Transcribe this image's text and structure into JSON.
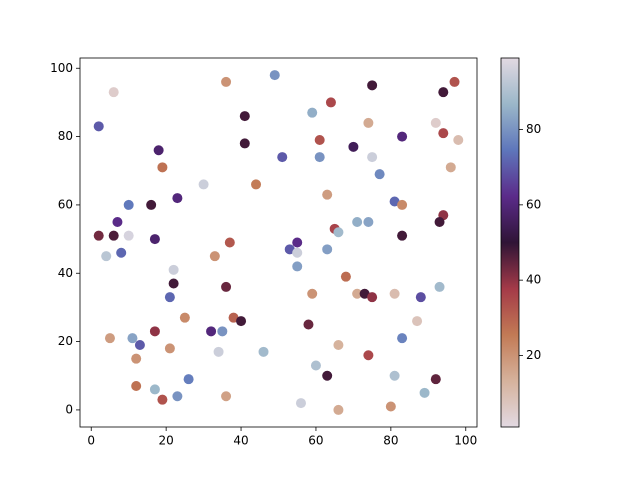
{
  "chart_data": {
    "type": "scatter",
    "x": [
      6,
      2,
      36,
      49,
      41,
      64,
      75,
      94,
      97,
      59,
      74,
      92,
      18,
      19,
      41,
      61,
      70,
      83,
      94,
      98,
      51,
      61,
      75,
      30,
      44,
      63,
      77,
      96,
      10,
      16,
      23,
      7,
      81,
      83,
      71,
      74,
      94,
      93,
      2,
      6,
      10,
      17,
      37,
      55,
      53,
      55,
      65,
      66,
      63,
      83,
      4,
      8,
      33,
      22,
      22,
      21,
      36,
      55,
      68,
      59,
      71,
      73,
      75,
      81,
      88,
      93,
      25,
      38,
      40,
      32,
      35,
      17,
      11,
      13,
      5,
      58,
      66,
      74,
      83,
      87,
      12,
      21,
      34,
      46,
      60,
      63,
      81,
      92,
      26,
      17,
      12,
      23,
      19,
      36,
      56,
      66,
      80,
      89
    ],
    "y": [
      93,
      83,
      96,
      98,
      86,
      90,
      95,
      93,
      96,
      87,
      84,
      84,
      76,
      71,
      78,
      79,
      77,
      80,
      81,
      79,
      74,
      74,
      74,
      66,
      66,
      63,
      69,
      71,
      60,
      60,
      62,
      55,
      61,
      60,
      55,
      55,
      57,
      55,
      51,
      51,
      51,
      50,
      49,
      49,
      47,
      46,
      53,
      52,
      47,
      51,
      45,
      46,
      45,
      41,
      37,
      33,
      36,
      42,
      39,
      34,
      34,
      34,
      33,
      34,
      33,
      36,
      27,
      27,
      26,
      23,
      23,
      23,
      21,
      19,
      21,
      25,
      19,
      16,
      21,
      26,
      15,
      18,
      17,
      17,
      13,
      10,
      10,
      9,
      9,
      6,
      7,
      4,
      3,
      4,
      2,
      0,
      1,
      5
    ],
    "c": [
      5,
      70,
      20,
      80,
      48,
      35,
      48,
      48,
      33,
      85,
      15,
      5,
      58,
      27,
      48,
      33,
      55,
      60,
      35,
      10,
      70,
      80,
      95,
      95,
      25,
      18,
      78,
      15,
      75,
      48,
      60,
      62,
      72,
      22,
      85,
      83,
      40,
      48,
      43,
      47,
      97,
      58,
      32,
      62,
      70,
      95,
      36,
      88,
      82,
      48,
      92,
      72,
      20,
      95,
      48,
      72,
      44,
      82,
      28,
      20,
      15,
      48,
      40,
      10,
      68,
      88,
      22,
      30,
      48,
      60,
      80,
      40,
      83,
      70,
      18,
      44,
      13,
      35,
      77,
      8,
      20,
      20,
      95,
      88,
      90,
      48,
      90,
      45,
      76,
      87,
      27,
      80,
      33,
      17,
      95,
      15,
      20,
      87
    ],
    "xlim": [
      -3,
      103
    ],
    "ylim": [
      -5,
      103
    ],
    "xticks": [
      0,
      20,
      40,
      60,
      80,
      100
    ],
    "yticks": [
      0,
      20,
      40,
      60,
      80,
      100
    ],
    "clim": [
      1,
      99
    ],
    "colorbar_ticks": [
      20,
      40,
      60,
      80
    ],
    "colormap": [
      "#e2d9e2",
      "#d6b29c",
      "#c27a55",
      "#a43a48",
      "#2f1436",
      "#5b2b8a",
      "#5e76bb",
      "#9bb7c9",
      "#e2d9e2"
    ]
  }
}
